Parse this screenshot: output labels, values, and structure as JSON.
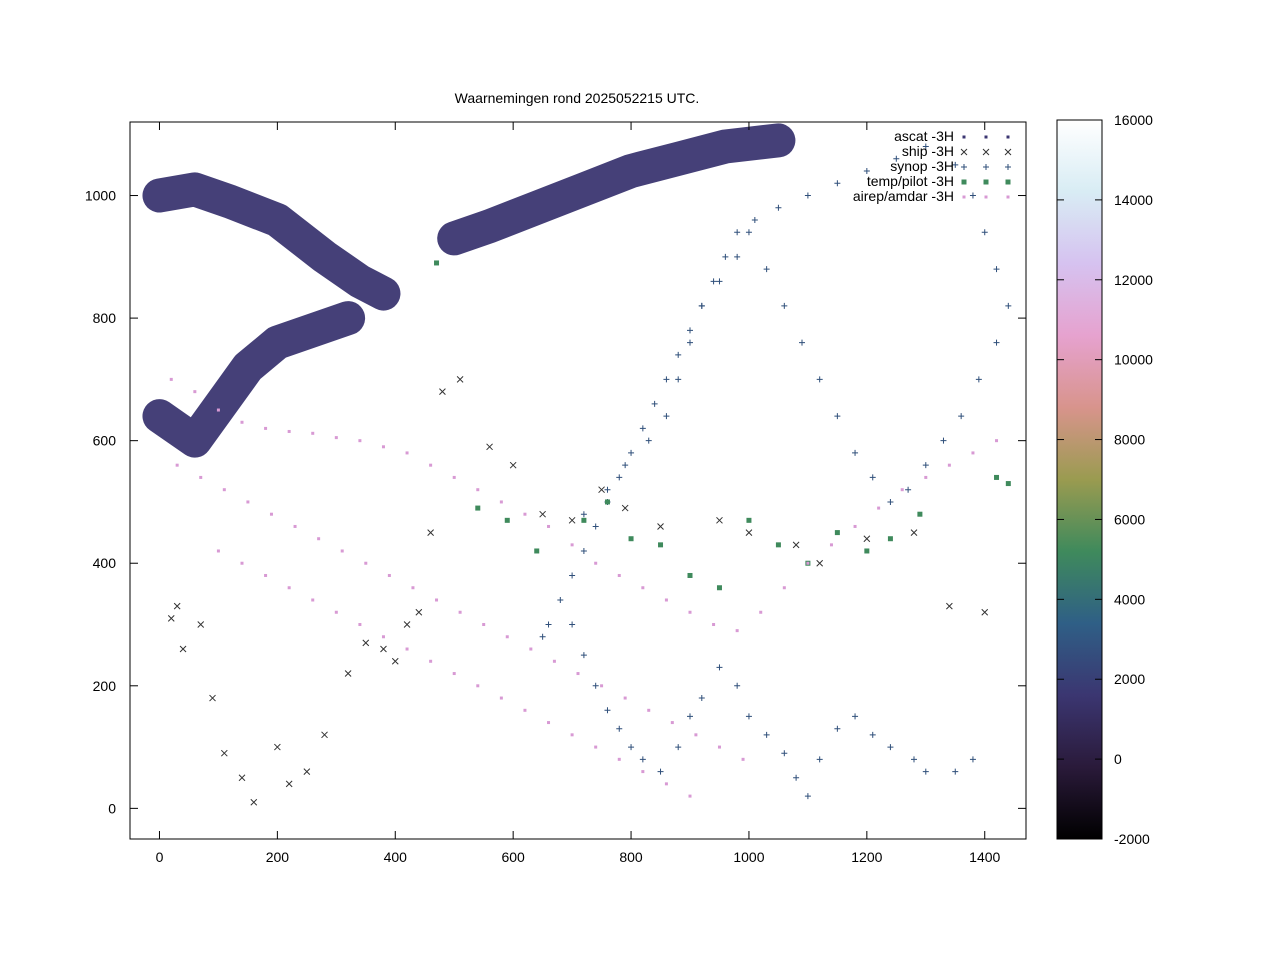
{
  "chart_data": {
    "type": "scatter",
    "title": "Waarnemingen rond 2025052215 UTC.",
    "xlabel": "",
    "ylabel": "",
    "xlim": [
      -50,
      1470
    ],
    "ylim": [
      -50,
      1120
    ],
    "xticks": [
      0,
      200,
      400,
      600,
      800,
      1000,
      1200,
      1400
    ],
    "yticks": [
      0,
      200,
      400,
      600,
      800,
      1000
    ],
    "grid": false,
    "legend_position": "top-right",
    "colorbar": {
      "min": -2000,
      "max": 16000,
      "ticks": [
        -2000,
        0,
        2000,
        4000,
        6000,
        8000,
        10000,
        12000,
        14000,
        16000
      ],
      "colors": [
        "#000000",
        "#2a1a3a",
        "#3b3671",
        "#2f5f86",
        "#3f8a5c",
        "#9a9b50",
        "#d8948c",
        "#e6a2cf",
        "#d6c2f0",
        "#d8ecf4",
        "#ffffff"
      ]
    },
    "series": [
      {
        "name": "ascat -3H",
        "marker": "dot",
        "color": "#3b3671",
        "coverage": [
          {
            "lat_band": "swath-1",
            "points": [
              [
                0,
                1000
              ],
              [
                60,
                1010
              ],
              [
                120,
                990
              ],
              [
                200,
                960
              ],
              [
                280,
                900
              ],
              [
                340,
                860
              ],
              [
                380,
                840
              ]
            ]
          },
          {
            "lat_band": "swath-2",
            "points": [
              [
                500,
                930
              ],
              [
                560,
                950
              ],
              [
                640,
                980
              ],
              [
                720,
                1010
              ],
              [
                800,
                1040
              ],
              [
                880,
                1060
              ],
              [
                960,
                1080
              ],
              [
                1050,
                1090
              ]
            ]
          },
          {
            "lat_band": "swath-3",
            "points": [
              [
                0,
                640
              ],
              [
                30,
                620
              ],
              [
                60,
                600
              ],
              [
                150,
                720
              ],
              [
                200,
                760
              ],
              [
                260,
                780
              ],
              [
                320,
                800
              ]
            ]
          }
        ]
      },
      {
        "name": "ship -3H",
        "marker": "x",
        "color": "#333333",
        "points": [
          [
            20,
            310
          ],
          [
            30,
            330
          ],
          [
            40,
            260
          ],
          [
            70,
            300
          ],
          [
            90,
            180
          ],
          [
            110,
            90
          ],
          [
            140,
            50
          ],
          [
            160,
            10
          ],
          [
            200,
            100
          ],
          [
            220,
            40
          ],
          [
            250,
            60
          ],
          [
            280,
            120
          ],
          [
            320,
            220
          ],
          [
            350,
            270
          ],
          [
            380,
            260
          ],
          [
            400,
            240
          ],
          [
            420,
            300
          ],
          [
            440,
            320
          ],
          [
            460,
            450
          ],
          [
            480,
            680
          ],
          [
            510,
            700
          ],
          [
            560,
            590
          ],
          [
            600,
            560
          ],
          [
            650,
            480
          ],
          [
            700,
            470
          ],
          [
            750,
            520
          ],
          [
            790,
            490
          ],
          [
            850,
            460
          ],
          [
            950,
            470
          ],
          [
            1000,
            450
          ],
          [
            1080,
            430
          ],
          [
            1120,
            400
          ],
          [
            1200,
            440
          ],
          [
            1280,
            450
          ],
          [
            1340,
            330
          ],
          [
            1400,
            320
          ]
        ]
      },
      {
        "name": "synop -3H",
        "marker": "+",
        "color": "#2f4f7a",
        "points": [
          [
            700,
            300
          ],
          [
            720,
            250
          ],
          [
            740,
            200
          ],
          [
            760,
            160
          ],
          [
            780,
            130
          ],
          [
            800,
            100
          ],
          [
            820,
            80
          ],
          [
            850,
            60
          ],
          [
            880,
            100
          ],
          [
            900,
            150
          ],
          [
            920,
            180
          ],
          [
            950,
            230
          ],
          [
            980,
            200
          ],
          [
            1000,
            150
          ],
          [
            1030,
            120
          ],
          [
            1060,
            90
          ],
          [
            1080,
            50
          ],
          [
            1100,
            20
          ],
          [
            1120,
            80
          ],
          [
            1150,
            130
          ],
          [
            1180,
            150
          ],
          [
            1210,
            120
          ],
          [
            1240,
            100
          ],
          [
            1280,
            80
          ],
          [
            1300,
            60
          ],
          [
            1350,
            60
          ],
          [
            1380,
            80
          ],
          [
            720,
            480
          ],
          [
            760,
            520
          ],
          [
            790,
            560
          ],
          [
            830,
            600
          ],
          [
            860,
            640
          ],
          [
            880,
            700
          ],
          [
            900,
            760
          ],
          [
            920,
            820
          ],
          [
            950,
            860
          ],
          [
            980,
            900
          ],
          [
            1000,
            940
          ],
          [
            1030,
            880
          ],
          [
            1060,
            820
          ],
          [
            1090,
            760
          ],
          [
            1120,
            700
          ],
          [
            1150,
            640
          ],
          [
            1180,
            580
          ],
          [
            1210,
            540
          ],
          [
            1240,
            500
          ],
          [
            1270,
            520
          ],
          [
            1300,
            560
          ],
          [
            1330,
            600
          ],
          [
            1360,
            640
          ],
          [
            1390,
            700
          ],
          [
            1420,
            760
          ],
          [
            1440,
            820
          ],
          [
            1420,
            880
          ],
          [
            1400,
            940
          ],
          [
            1380,
            1000
          ],
          [
            1350,
            1050
          ],
          [
            1300,
            1080
          ],
          [
            1250,
            1060
          ],
          [
            1200,
            1040
          ],
          [
            1150,
            1020
          ],
          [
            1100,
            1000
          ],
          [
            1050,
            980
          ],
          [
            1010,
            960
          ],
          [
            980,
            940
          ],
          [
            960,
            900
          ],
          [
            940,
            860
          ],
          [
            920,
            820
          ],
          [
            900,
            780
          ],
          [
            880,
            740
          ],
          [
            860,
            700
          ],
          [
            840,
            660
          ],
          [
            820,
            620
          ],
          [
            800,
            580
          ],
          [
            780,
            540
          ],
          [
            760,
            500
          ],
          [
            740,
            460
          ],
          [
            720,
            420
          ],
          [
            700,
            380
          ],
          [
            680,
            340
          ],
          [
            660,
            300
          ],
          [
            650,
            280
          ]
        ]
      },
      {
        "name": "temp/pilot -3H",
        "marker": "square",
        "color": "#3f8a5c",
        "points": [
          [
            470,
            890
          ],
          [
            540,
            490
          ],
          [
            590,
            470
          ],
          [
            640,
            420
          ],
          [
            720,
            470
          ],
          [
            760,
            500
          ],
          [
            800,
            440
          ],
          [
            850,
            430
          ],
          [
            900,
            380
          ],
          [
            950,
            360
          ],
          [
            1000,
            470
          ],
          [
            1050,
            430
          ],
          [
            1100,
            400
          ],
          [
            1150,
            450
          ],
          [
            1200,
            420
          ],
          [
            1240,
            440
          ],
          [
            1290,
            480
          ],
          [
            1420,
            540
          ],
          [
            1440,
            530
          ]
        ]
      },
      {
        "name": "airep/amdar -3H",
        "marker": "dot",
        "color": "#d89ad4",
        "points": [
          [
            20,
            700
          ],
          [
            60,
            680
          ],
          [
            100,
            650
          ],
          [
            140,
            630
          ],
          [
            180,
            620
          ],
          [
            220,
            615
          ],
          [
            260,
            612
          ],
          [
            300,
            605
          ],
          [
            340,
            600
          ],
          [
            380,
            590
          ],
          [
            420,
            580
          ],
          [
            460,
            560
          ],
          [
            500,
            540
          ],
          [
            540,
            520
          ],
          [
            580,
            500
          ],
          [
            620,
            480
          ],
          [
            660,
            460
          ],
          [
            700,
            430
          ],
          [
            740,
            400
          ],
          [
            780,
            380
          ],
          [
            820,
            360
          ],
          [
            860,
            340
          ],
          [
            900,
            320
          ],
          [
            940,
            300
          ],
          [
            980,
            290
          ],
          [
            1020,
            320
          ],
          [
            1060,
            360
          ],
          [
            1100,
            400
          ],
          [
            1140,
            430
          ],
          [
            1180,
            460
          ],
          [
            1220,
            490
          ],
          [
            1260,
            520
          ],
          [
            1300,
            540
          ],
          [
            1340,
            560
          ],
          [
            1380,
            580
          ],
          [
            1420,
            600
          ],
          [
            30,
            560
          ],
          [
            70,
            540
          ],
          [
            110,
            520
          ],
          [
            150,
            500
          ],
          [
            190,
            480
          ],
          [
            230,
            460
          ],
          [
            270,
            440
          ],
          [
            310,
            420
          ],
          [
            350,
            400
          ],
          [
            390,
            380
          ],
          [
            430,
            360
          ],
          [
            470,
            340
          ],
          [
            510,
            320
          ],
          [
            550,
            300
          ],
          [
            590,
            280
          ],
          [
            630,
            260
          ],
          [
            670,
            240
          ],
          [
            710,
            220
          ],
          [
            750,
            200
          ],
          [
            790,
            180
          ],
          [
            830,
            160
          ],
          [
            870,
            140
          ],
          [
            910,
            120
          ],
          [
            950,
            100
          ],
          [
            990,
            80
          ],
          [
            100,
            420
          ],
          [
            140,
            400
          ],
          [
            180,
            380
          ],
          [
            220,
            360
          ],
          [
            260,
            340
          ],
          [
            300,
            320
          ],
          [
            340,
            300
          ],
          [
            380,
            280
          ],
          [
            420,
            260
          ],
          [
            460,
            240
          ],
          [
            500,
            220
          ],
          [
            540,
            200
          ],
          [
            580,
            180
          ],
          [
            620,
            160
          ],
          [
            660,
            140
          ],
          [
            700,
            120
          ],
          [
            740,
            100
          ],
          [
            780,
            80
          ],
          [
            820,
            60
          ],
          [
            860,
            40
          ],
          [
            900,
            20
          ]
        ]
      }
    ]
  }
}
